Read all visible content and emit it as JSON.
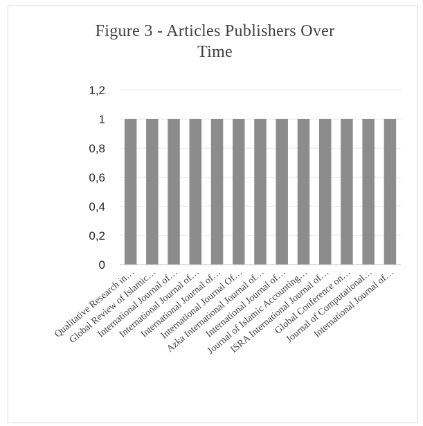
{
  "chart_data": {
    "type": "bar",
    "title": "Figure 3 - Articles Publishers Over Time",
    "title_lines": [
      "Figure 3 - Articles Publishers Over",
      "Time"
    ],
    "xlabel": "",
    "ylabel": "",
    "ylim": [
      0,
      1.2
    ],
    "yticks": [
      "0",
      "0,2",
      "0,4",
      "0,6",
      "0,8",
      "1",
      "1,2"
    ],
    "ytick_values": [
      0,
      0.2,
      0.4,
      0.6,
      0.8,
      1.0,
      1.2
    ],
    "grid": true,
    "legend": "none",
    "bar_color": "#8c8c8c",
    "categories": [
      "Qualitative Research in…",
      "Global Review of Islamic…",
      "International Journal of…",
      "International Journal of…",
      "International Journal of…",
      "International Journal Of…",
      "Azka International Journal of…",
      "International Journal of…",
      "Journal of Islamic Accounting…",
      "ISRA International Journal of…",
      "Global Conference on…",
      "Journal of Computational…",
      "International Journal of…"
    ],
    "values": [
      1,
      1,
      1,
      1,
      1,
      1,
      1,
      1,
      1,
      1,
      1,
      1,
      1
    ]
  }
}
